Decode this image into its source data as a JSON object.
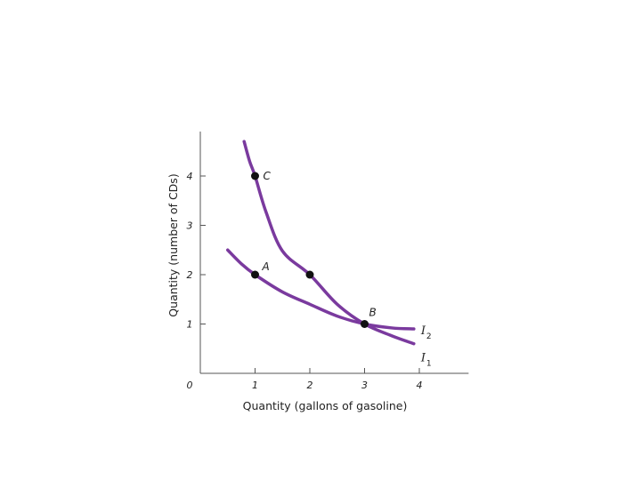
{
  "chart_data": {
    "type": "line",
    "xlabel": "Quantity (gallons of gasoline)",
    "ylabel": "Quantity (number of CDs)",
    "xlim": [
      0,
      4.9
    ],
    "ylim": [
      0,
      4.9
    ],
    "origin_label": "0",
    "x_ticks": [
      1,
      2,
      3,
      4
    ],
    "x_tick_labels": [
      "1",
      "2",
      "3",
      "4"
    ],
    "y_ticks": [
      1,
      2,
      3,
      4
    ],
    "y_tick_labels": [
      "1",
      "2",
      "3",
      "4"
    ],
    "grid": false,
    "series": [
      {
        "name": "I1",
        "label_main": "I",
        "label_sub": "1",
        "color": "#7a3a9e",
        "x": [
          0.8,
          0.9,
          1.0,
          1.2,
          1.5,
          2.0,
          2.5,
          3.0,
          3.5,
          3.9
        ],
        "y": [
          4.7,
          4.3,
          4.0,
          3.27,
          2.48,
          2.0,
          1.4,
          1.0,
          0.76,
          0.6
        ]
      },
      {
        "name": "I2",
        "label_main": "I",
        "label_sub": "2",
        "color": "#7a3a9e",
        "x": [
          0.5,
          0.75,
          1.0,
          1.5,
          2.0,
          2.5,
          3.0,
          3.5,
          3.9
        ],
        "y": [
          2.5,
          2.22,
          2.0,
          1.65,
          1.4,
          1.16,
          1.0,
          0.92,
          0.9
        ]
      }
    ],
    "points": [
      {
        "label": "A",
        "x": 1,
        "y": 2
      },
      {
        "label": "C",
        "x": 1,
        "y": 4
      },
      {
        "label": "",
        "x": 2,
        "y": 2
      },
      {
        "label": "B",
        "x": 3,
        "y": 1
      }
    ]
  }
}
